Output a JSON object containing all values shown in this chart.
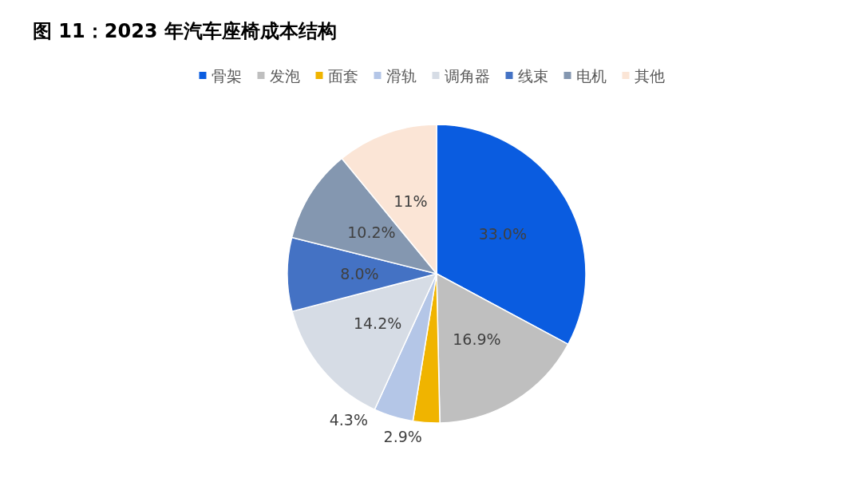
{
  "chart_data": {
    "type": "pie",
    "title": "图 11：2023 年汽车座椅成本结构",
    "categories": [
      "骨架",
      "发泡",
      "面套",
      "滑轨",
      "调角器",
      "线束",
      "电机",
      "其他"
    ],
    "values": [
      33.0,
      16.9,
      2.9,
      4.3,
      14.2,
      8.0,
      10.2,
      11
    ],
    "colors": [
      "#0a5ce0",
      "#bfbfbf",
      "#f0b400",
      "#b4c6e7",
      "#d6dce5",
      "#4472c4",
      "#8497b0",
      "#fbe5d6"
    ],
    "value_labels": [
      "33.0%",
      "16.9%",
      "2.9%",
      "4.3%",
      "14.2%",
      "8.0%",
      "10.2%",
      "11%"
    ],
    "legend": "top"
  }
}
